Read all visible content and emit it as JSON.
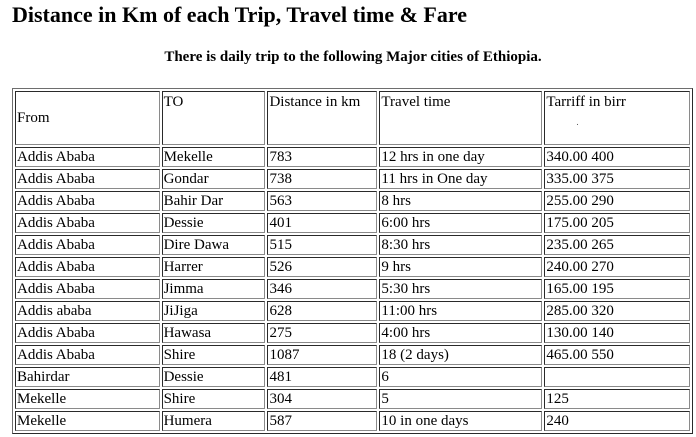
{
  "title": "Distance in Km of each Trip, Travel time & Fare",
  "subtitle": "There is daily trip to the following Major cities of Ethiopia.",
  "table": {
    "headers": [
      "From",
      "TO",
      "Distance in km",
      "Travel time",
      "Tarriff in birr"
    ],
    "tariff_header_mark": ".",
    "rows": [
      [
        "Addis Ababa",
        "Mekelle",
        "783",
        "12 hrs in one day",
        "340.00 400"
      ],
      [
        "Addis Ababa",
        "Gondar",
        "738",
        "11 hrs in One day",
        "335.00 375"
      ],
      [
        "Addis Ababa",
        "Bahir Dar",
        "563",
        "8 hrs",
        "255.00 290"
      ],
      [
        "Addis Ababa",
        "Dessie",
        "401",
        "6:00 hrs",
        "175.00 205"
      ],
      [
        "Addis Ababa",
        "Dire Dawa",
        "515",
        "8:30 hrs",
        "235.00 265"
      ],
      [
        "Addis Ababa",
        "Harrer",
        "526",
        "9 hrs",
        "240.00 270"
      ],
      [
        "Addis Ababa",
        "Jimma",
        "346",
        "5:30 hrs",
        "165.00 195"
      ],
      [
        "Addis ababa",
        "JiJiga",
        "628",
        "11:00 hrs",
        "285.00 320"
      ],
      [
        "Addis Ababa",
        "Hawasa",
        "275",
        "4:00 hrs",
        "130.00 140"
      ],
      [
        "Addis Ababa",
        "Shire",
        "1087",
        "18 (2 days)",
        "465.00 550"
      ],
      [
        "Bahirdar",
        "Dessie",
        "481",
        "6",
        ""
      ],
      [
        "Mekelle",
        "Shire",
        "304",
        "5",
        "125"
      ],
      [
        "Mekelle",
        "Humera",
        "587",
        "10 in one days",
        "240"
      ]
    ]
  }
}
